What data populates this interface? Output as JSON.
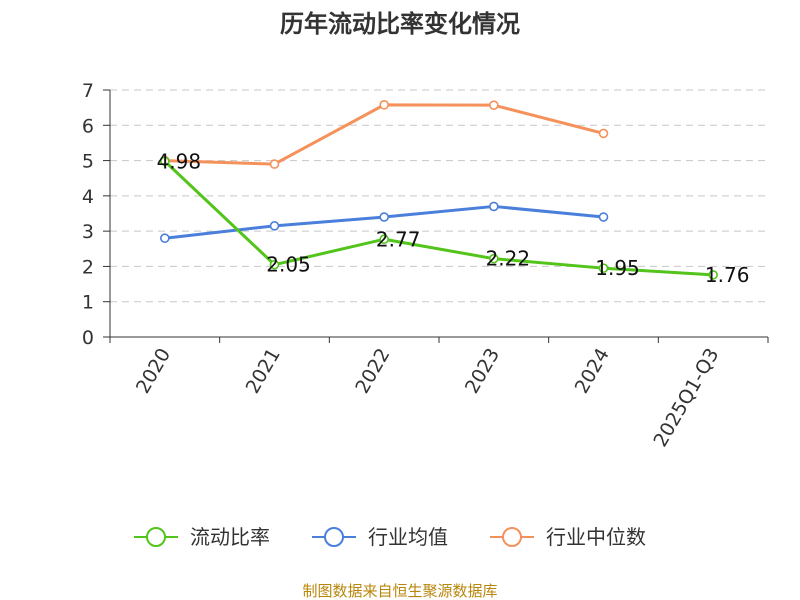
{
  "chart_data": {
    "type": "line",
    "title": "历年流动比率变化情况",
    "categories": [
      "2020",
      "2021",
      "2022",
      "2023",
      "2024",
      "2025Q1-Q3"
    ],
    "ylim": [
      0,
      7
    ],
    "yticks": [
      "0",
      "1",
      "2",
      "3",
      "4",
      "5",
      "6",
      "7"
    ],
    "grid": true,
    "legend_position": "bottom",
    "series": [
      {
        "name": "流动比率",
        "color": "#52c41a",
        "values": [
          4.98,
          2.05,
          2.77,
          2.22,
          1.95,
          1.76
        ],
        "labels": [
          "4.98",
          "2.05",
          "2.77",
          "2.22",
          "1.95",
          "1.76"
        ]
      },
      {
        "name": "行业均值",
        "color": "#4a7fdb",
        "values": [
          2.8,
          3.15,
          3.4,
          3.7,
          3.4,
          null
        ]
      },
      {
        "name": "行业中位数",
        "color": "#f5915a",
        "values": [
          5.0,
          4.9,
          6.58,
          6.57,
          5.77,
          null
        ]
      }
    ],
    "source": "制图数据来自恒生聚源数据库"
  }
}
